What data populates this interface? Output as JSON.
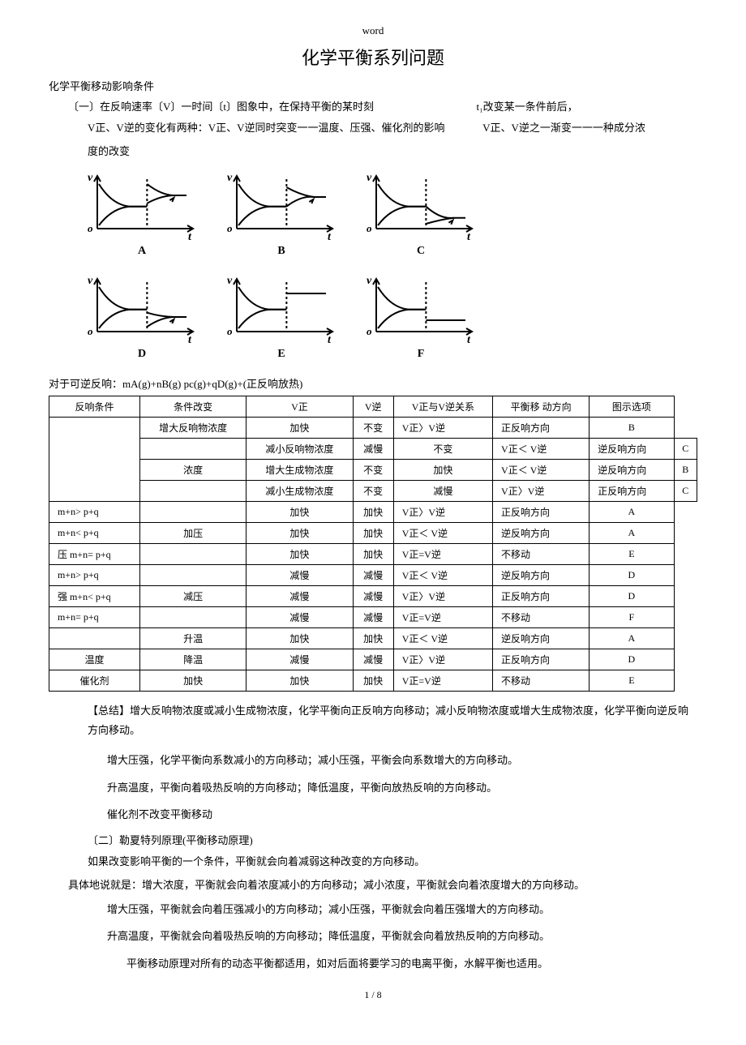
{
  "doc": {
    "header_label": "word",
    "main_title": "化学平衡系列问题",
    "section1": "化学平衡移动影响条件",
    "sub1": "〔一〕在反响速率〔V〕一时间〔t〕图象中，在保持平衡的某时刻",
    "sub1_mid": "t₁改变某一条件前后，",
    "line2a": "V正、V逆的变化有两种：V正、V逆同时突变一一温度、压强、催化剂的影响",
    "line2b": "V正、V逆之一渐变一一一种成分浓",
    "line3": "度的改变",
    "reaction": "对于可逆反响：mA(g)+nB(g) pc(g)+qD(g)+(正反响放热)",
    "summary_label": "【总结】",
    "summary1": "增大反响物浓度或减小生成物浓度，化学平衡向正反响方向移动；减小反响物浓度或增大生成物浓度，化学平衡向逆反响方向移动。",
    "summary2": "增大压强，化学平衡向系数减小的方向移动；减小压强，平衡会向系数增大的方向移动。",
    "summary3": "升高温度，平衡向着吸热反响的方向移动；降低温度，平衡向放热反响的方向移动。",
    "summary4": "催化剂不改变平衡移动",
    "sub2": "〔二〕勒夏特列原理(平衡移动原理)",
    "principle1": "如果改变影响平衡的一个条件，平衡就会向着减弱这种改变的方向移动。",
    "principle2": "具体地说就是：增大浓度，平衡就会向着浓度减小的方向移动；减小浓度，平衡就会向着浓度增大的方向移动。",
    "principle3": "增大压强，平衡就会向着压强减小的方向移动；减小压强，平衡就会向着压强增大的方向移动。",
    "principle4": "升高温度，平衡就会向着吸热反响的方向移动；降低温度，平衡就会向着放热反响的方向移动。",
    "principle5": "平衡移动原理对所有的动态平衡都适用，如对后面将要学习的电离平衡，水解平衡也适用。",
    "page_num": "1 / 8"
  },
  "graphs": {
    "labels": [
      "A",
      "B",
      "C",
      "D",
      "E",
      "F"
    ],
    "axis_y": "v",
    "axis_x": "t",
    "stroke": "#000000",
    "width": 150,
    "height": 95
  },
  "table": {
    "headers": [
      "反响条件",
      "条件改变",
      "V正",
      "V逆",
      "V正与V逆关系",
      "平衡移  动方向",
      "图示选项"
    ],
    "rows": [
      {
        "cond": "",
        "change": "增大反响物浓度",
        "vf": "加快",
        "vr": "不变",
        "rel": "V正〉V逆",
        "dir": "正反响方向",
        "opt": "B"
      },
      {
        "cond": "",
        "change": "减小反响物浓度",
        "vf": "减慢",
        "vr": "不变",
        "rel": "V正＜ V逆",
        "dir": "逆反响方向",
        "opt": "C"
      },
      {
        "cond": "浓度",
        "change": "增大生成物浓度",
        "vf": "不变",
        "vr": "加快",
        "rel": "V正＜ V逆",
        "dir": "逆反响方向",
        "opt": "B"
      },
      {
        "cond": "",
        "change": "减小生成物浓度",
        "vf": "不变",
        "vr": "减慢",
        "rel": "V正〉V逆",
        "dir": "正反响方向",
        "opt": "C"
      },
      {
        "cond": "m+n> p+q",
        "change": "",
        "vf": "加快",
        "vr": "加快",
        "rel": "V正〉V逆",
        "dir": "正反响方向",
        "opt": "A"
      },
      {
        "cond": "m+n< p+q",
        "change": "加压",
        "vf": "加快",
        "vr": "加快",
        "rel": "V正＜ V逆",
        "dir": "逆反响方向",
        "opt": "A"
      },
      {
        "cond": "压    m+n= p+q",
        "change": "",
        "vf": "加快",
        "vr": "加快",
        "rel": "V正=V逆",
        "dir": "不移动",
        "opt": "E"
      },
      {
        "cond": "m+n> p+q",
        "change": "",
        "vf": "减慢",
        "vr": "减慢",
        "rel": "V正＜ V逆",
        "dir": "逆反响方向",
        "opt": "D"
      },
      {
        "cond": "强    m+n< p+q",
        "change": "减压",
        "vf": "减慢",
        "vr": "减慢",
        "rel": "V正〉V逆",
        "dir": "正反响方向",
        "opt": "D"
      },
      {
        "cond": "m+n= p+q",
        "change": "",
        "vf": "减慢",
        "vr": "减慢",
        "rel": "V正=V逆",
        "dir": "不移动",
        "opt": "F"
      },
      {
        "cond": "",
        "change": "升温",
        "vf": "加快",
        "vr": "加快",
        "rel": "V正＜ V逆",
        "dir": "逆反响方向",
        "opt": "A"
      },
      {
        "cond": "温度",
        "change": "降温",
        "vf": "减慢",
        "vr": "减慢",
        "rel": "V正〉V逆",
        "dir": "正反响方向",
        "opt": "D"
      },
      {
        "cond": "催化剂",
        "change": "加快",
        "vf": "加快",
        "vr": "加快",
        "rel": "V正=V逆",
        "dir": "不移动",
        "opt": "E"
      }
    ]
  }
}
